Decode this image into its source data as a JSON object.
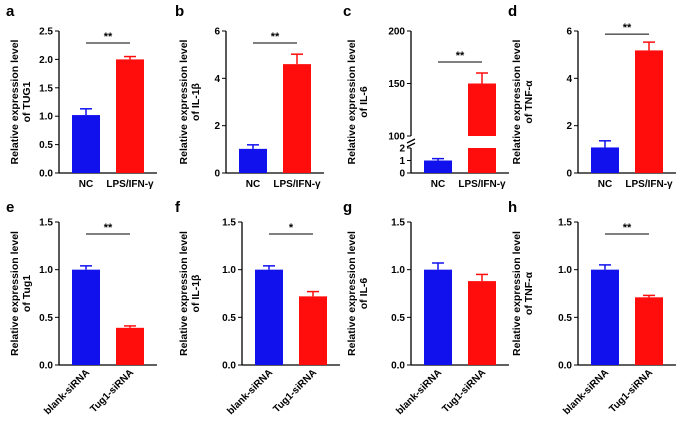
{
  "chart_data": [
    {
      "panel": "a",
      "type": "bar",
      "categories": [
        "NC",
        "LPS/IFN-γ"
      ],
      "values": [
        1.02,
        2.0
      ],
      "errors": [
        0.11,
        0.05
      ],
      "colors": [
        "#1111ee",
        "#ff0d0d"
      ],
      "ylabel": "Relative expression level",
      "ylabel2": "of TUG1",
      "ylim": [
        0,
        2.5
      ],
      "yticks": [
        "0.0",
        "0.5",
        "1.0",
        "1.5",
        "2.0",
        "2.5"
      ],
      "significance": "**",
      "xlabel_rotated": false
    },
    {
      "panel": "b",
      "type": "bar",
      "categories": [
        "NC",
        "LPS/IFN-γ"
      ],
      "values": [
        1.02,
        4.6
      ],
      "errors": [
        0.17,
        0.42
      ],
      "colors": [
        "#1111ee",
        "#ff0d0d"
      ],
      "ylabel": "Relative expression level",
      "ylabel2": "of IL-1β",
      "ylim": [
        0,
        6
      ],
      "yticks": [
        "0",
        "2",
        "4",
        "6"
      ],
      "significance": "**",
      "xlabel_rotated": false
    },
    {
      "panel": "c",
      "type": "bar",
      "categories": [
        "NC",
        "LPS/IFN-γ"
      ],
      "values": [
        1.0,
        150
      ],
      "errors": [
        0.15,
        10
      ],
      "colors": [
        "#1111ee",
        "#ff0d0d"
      ],
      "ylabel": "Relative expression level",
      "ylabel2": "of IL-6",
      "broken_axis": {
        "lower": [
          0,
          2
        ],
        "upper": [
          100,
          200
        ]
      },
      "yticks_lower": [
        "0",
        "1",
        "2"
      ],
      "yticks_upper": [
        "100",
        "150",
        "200"
      ],
      "significance": "**",
      "xlabel_rotated": false
    },
    {
      "panel": "d",
      "type": "bar",
      "categories": [
        "NC",
        "LPS/IFN-γ"
      ],
      "values": [
        1.08,
        5.18
      ],
      "errors": [
        0.28,
        0.35
      ],
      "colors": [
        "#1111ee",
        "#ff0d0d"
      ],
      "ylabel": "Relative expression level",
      "ylabel2": "of TNF-α",
      "ylim": [
        0,
        6
      ],
      "yticks": [
        "0",
        "2",
        "4",
        "6"
      ],
      "significance": "**",
      "xlabel_rotated": false
    },
    {
      "panel": "e",
      "type": "bar",
      "categories": [
        "blank-siRNA",
        "Tug1-siRNA"
      ],
      "values": [
        1.0,
        0.39
      ],
      "errors": [
        0.04,
        0.02
      ],
      "colors": [
        "#1111ee",
        "#ff0d0d"
      ],
      "ylabel": "Relative expression level",
      "ylabel2": "of Tug1",
      "ylim": [
        0,
        1.5
      ],
      "yticks": [
        "0.0",
        "0.5",
        "1.0",
        "1.5"
      ],
      "significance": "**",
      "xlabel_rotated": true
    },
    {
      "panel": "f",
      "type": "bar",
      "categories": [
        "blank-siRNA",
        "Tug1-siRNA"
      ],
      "values": [
        1.0,
        0.72
      ],
      "errors": [
        0.04,
        0.05
      ],
      "colors": [
        "#1111ee",
        "#ff0d0d"
      ],
      "ylabel": "Relative expression level",
      "ylabel2": "of IL-1β",
      "ylim": [
        0,
        1.5
      ],
      "yticks": [
        "0.0",
        "0.5",
        "1.0",
        "1.5"
      ],
      "significance": "*",
      "xlabel_rotated": true
    },
    {
      "panel": "g",
      "type": "bar",
      "categories": [
        "blank-siRNA",
        "Tug1-siRNA"
      ],
      "values": [
        1.0,
        0.88
      ],
      "errors": [
        0.07,
        0.07
      ],
      "colors": [
        "#1111ee",
        "#ff0d0d"
      ],
      "ylabel": "Relative expression level",
      "ylabel2": "of IL-6",
      "ylim": [
        0,
        1.5
      ],
      "yticks": [
        "0.0",
        "0.5",
        "1.0",
        "1.5"
      ],
      "significance": "",
      "xlabel_rotated": true
    },
    {
      "panel": "h",
      "type": "bar",
      "categories": [
        "blank-siRNA",
        "Tug1-siRNA"
      ],
      "values": [
        1.0,
        0.71
      ],
      "errors": [
        0.05,
        0.02
      ],
      "colors": [
        "#1111ee",
        "#ff0d0d"
      ],
      "ylabel": "Relative expression level",
      "ylabel2": "of TNF-α",
      "ylim": [
        0,
        1.5
      ],
      "yticks": [
        "0.0",
        "0.5",
        "1.0",
        "1.5"
      ],
      "significance": "**",
      "xlabel_rotated": true
    }
  ]
}
